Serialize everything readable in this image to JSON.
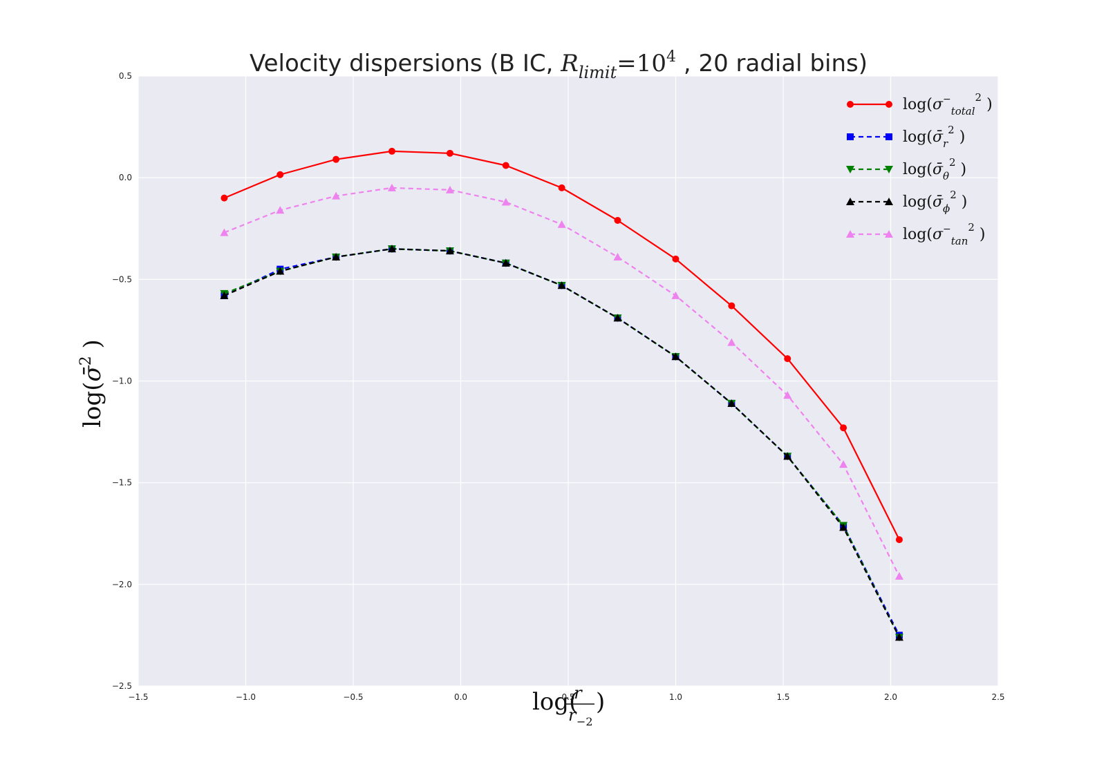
{
  "chart_data": {
    "type": "line",
    "title": {
      "prefix": "Velocity dispersions (B IC, ",
      "math_main": "R",
      "math_sub": "limit",
      "math_eq": "=10",
      "math_sup": "4",
      "suffix": " , 20 radial bins)"
    },
    "xlabel": {
      "lead": "log(",
      "num": "r",
      "den": "r",
      "den_sub": "−2",
      "tail": ")"
    },
    "ylabel": {
      "lead": "log(",
      "sym": "σ̄",
      "sup": "2",
      "tail": " )"
    },
    "xlim": [
      -1.5,
      2.5
    ],
    "ylim": [
      -2.5,
      0.5
    ],
    "xticks": [
      -1.5,
      -1.0,
      -0.5,
      0.0,
      0.5,
      1.0,
      1.5,
      2.0,
      2.5
    ],
    "xtick_labels": [
      "−1.5",
      "−1.0",
      "−0.5",
      "0.0",
      "0.5",
      "1.0",
      "1.5",
      "2.0",
      "2.5"
    ],
    "yticks": [
      -2.5,
      -2.0,
      -1.5,
      -1.0,
      -0.5,
      0.0,
      0.5
    ],
    "ytick_labels": [
      "−2.5",
      "−2.0",
      "−1.5",
      "−1.0",
      "−0.5",
      "0.0",
      "0.5"
    ],
    "grid": true,
    "legend_position": "top-right",
    "background": "#eaeaf2",
    "x": [
      -1.1,
      -0.84,
      -0.58,
      -0.32,
      -0.05,
      0.21,
      0.47,
      0.73,
      1.0,
      1.26,
      1.52,
      1.78,
      2.04
    ],
    "series": [
      {
        "name": "log(σ_total² )",
        "legend": {
          "lead": "log(",
          "sym": "σ",
          "bar": "−",
          "sub": "total",
          "sup": "2",
          "tail": " )"
        },
        "color": "#ff0000",
        "line": "solid",
        "marker": "circle",
        "values": [
          -0.1,
          0.015,
          0.09,
          0.13,
          0.12,
          0.06,
          -0.05,
          -0.21,
          -0.4,
          -0.63,
          -0.89,
          -1.23,
          -1.78
        ]
      },
      {
        "name": "log(σ_r² )",
        "legend": {
          "lead": "log(",
          "sym": "σ̄",
          "bar": "",
          "sub": "r",
          "sup": "2",
          "tail": " )"
        },
        "color": "#0000ff",
        "line": "dashed",
        "marker": "square",
        "values": [
          -0.58,
          -0.45,
          -0.39,
          -0.35,
          -0.36,
          -0.42,
          -0.53,
          -0.69,
          -0.88,
          -1.11,
          -1.37,
          -1.71,
          -2.25
        ]
      },
      {
        "name": "log(σ_θ² )",
        "legend": {
          "lead": "log(",
          "sym": "σ̄",
          "bar": "",
          "sub": "θ",
          "sup": "2",
          "tail": " )"
        },
        "color": "#008000",
        "line": "dashed",
        "marker": "triangle-down",
        "values": [
          -0.57,
          -0.46,
          -0.39,
          -0.35,
          -0.36,
          -0.42,
          -0.53,
          -0.69,
          -0.88,
          -1.11,
          -1.37,
          -1.71,
          -2.26
        ]
      },
      {
        "name": "log(σ_φ² )",
        "legend": {
          "lead": "log(",
          "sym": "σ̄",
          "bar": "",
          "sub": "ϕ",
          "sup": "2",
          "tail": " )"
        },
        "color": "#000000",
        "line": "dashed",
        "marker": "triangle-up",
        "values": [
          -0.58,
          -0.46,
          -0.39,
          -0.35,
          -0.36,
          -0.42,
          -0.53,
          -0.69,
          -0.88,
          -1.11,
          -1.37,
          -1.72,
          -2.26
        ]
      },
      {
        "name": "log(σ_tan² )",
        "legend": {
          "lead": "log(",
          "sym": "σ",
          "bar": "−",
          "sub": "tan",
          "sup": "2",
          "tail": " )"
        },
        "color": "#ee82ee",
        "line": "dashed",
        "marker": "triangle-up",
        "values": [
          -0.27,
          -0.16,
          -0.09,
          -0.05,
          -0.06,
          -0.12,
          -0.23,
          -0.39,
          -0.58,
          -0.81,
          -1.07,
          -1.41,
          -1.96
        ]
      }
    ]
  }
}
